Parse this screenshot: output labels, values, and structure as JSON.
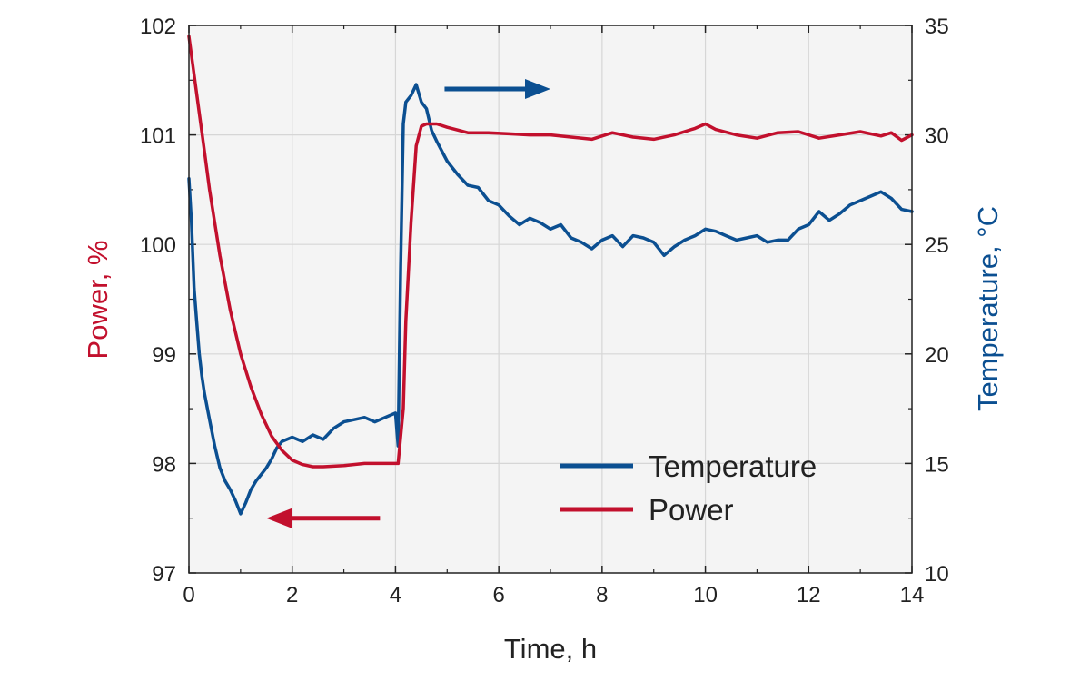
{
  "chart_data": {
    "type": "line",
    "xlabel": "Time, h",
    "ylabel_left": "Power, %",
    "ylabel_right": "Temperature, °C",
    "xlim": [
      0,
      14
    ],
    "ylim_left": [
      97,
      102
    ],
    "ylim_right": [
      10,
      35
    ],
    "x_ticks": [
      0,
      2,
      4,
      6,
      8,
      10,
      12,
      14
    ],
    "y_left_ticks": [
      97,
      98,
      99,
      100,
      101,
      102
    ],
    "y_right_ticks": [
      10,
      15,
      20,
      25,
      30,
      35
    ],
    "grid": true,
    "legend_position": "bottom-right",
    "colors": {
      "temperature": "#0b4f91",
      "power": "#c2102d",
      "plot_background": "#f4f4f4"
    },
    "series": [
      {
        "name": "Temperature",
        "axis": "right",
        "color": "#0b4f91",
        "x": [
          0,
          0.05,
          0.1,
          0.15,
          0.2,
          0.25,
          0.3,
          0.4,
          0.5,
          0.6,
          0.7,
          0.8,
          0.9,
          1.0,
          1.1,
          1.2,
          1.3,
          1.4,
          1.5,
          1.6,
          1.7,
          1.8,
          2.0,
          2.2,
          2.4,
          2.6,
          2.8,
          3.0,
          3.2,
          3.4,
          3.6,
          3.8,
          4.0,
          4.05,
          4.1,
          4.15,
          4.2,
          4.3,
          4.4,
          4.5,
          4.6,
          4.7,
          4.8,
          5.0,
          5.2,
          5.4,
          5.6,
          5.8,
          6.0,
          6.2,
          6.4,
          6.6,
          6.8,
          7.0,
          7.2,
          7.4,
          7.6,
          7.8,
          8.0,
          8.2,
          8.4,
          8.6,
          8.8,
          9.0,
          9.2,
          9.4,
          9.6,
          9.8,
          10.0,
          10.2,
          10.4,
          10.6,
          10.8,
          11.0,
          11.2,
          11.4,
          11.6,
          11.8,
          12.0,
          12.2,
          12.4,
          12.6,
          12.8,
          13.0,
          13.2,
          13.4,
          13.6,
          13.8,
          14.0
        ],
        "y": [
          28,
          26,
          23,
          21.5,
          20,
          19,
          18.2,
          17,
          15.8,
          14.8,
          14.2,
          13.8,
          13.3,
          12.7,
          13.2,
          13.8,
          14.2,
          14.5,
          14.8,
          15.2,
          15.7,
          16,
          16.2,
          16,
          16.3,
          16.1,
          16.6,
          16.9,
          17,
          17.1,
          16.9,
          17.1,
          17.3,
          15.8,
          24,
          30.5,
          31.5,
          31.8,
          32.3,
          31.5,
          31.2,
          30.2,
          29.7,
          28.8,
          28.2,
          27.7,
          27.6,
          27,
          26.8,
          26.3,
          25.9,
          26.2,
          26,
          25.7,
          25.9,
          25.3,
          25.1,
          24.8,
          25.2,
          25.4,
          24.9,
          25.4,
          25.3,
          25.1,
          24.5,
          24.9,
          25.2,
          25.4,
          25.7,
          25.6,
          25.4,
          25.2,
          25.3,
          25.4,
          25.1,
          25.2,
          25.2,
          25.7,
          25.9,
          26.5,
          26.1,
          26.4,
          26.8,
          27,
          27.2,
          27.4,
          27.1,
          26.6,
          26.5
        ]
      },
      {
        "name": "Power",
        "axis": "left",
        "color": "#c2102d",
        "x": [
          0,
          0.1,
          0.2,
          0.3,
          0.4,
          0.5,
          0.6,
          0.8,
          1.0,
          1.2,
          1.4,
          1.6,
          1.8,
          2.0,
          2.2,
          2.4,
          2.6,
          3.0,
          3.4,
          3.8,
          4.05,
          4.15,
          4.2,
          4.3,
          4.4,
          4.5,
          4.6,
          4.8,
          5.0,
          5.4,
          5.8,
          6.2,
          6.6,
          7.0,
          7.4,
          7.8,
          8.2,
          8.6,
          9.0,
          9.4,
          9.8,
          10.0,
          10.2,
          10.6,
          11.0,
          11.4,
          11.8,
          12.2,
          12.6,
          13.0,
          13.4,
          13.6,
          13.8,
          14.0
        ],
        "y": [
          101.9,
          101.55,
          101.2,
          100.85,
          100.5,
          100.2,
          99.9,
          99.4,
          99.0,
          98.7,
          98.45,
          98.25,
          98.12,
          98.03,
          97.99,
          97.97,
          97.97,
          97.98,
          98.0,
          98.0,
          98.0,
          98.5,
          99.3,
          100.2,
          100.9,
          101.08,
          101.1,
          101.1,
          101.07,
          101.02,
          101.02,
          101.01,
          101.0,
          101.0,
          100.98,
          100.96,
          101.02,
          100.98,
          100.96,
          101.0,
          101.06,
          101.1,
          101.05,
          101.0,
          100.97,
          101.02,
          101.03,
          100.97,
          101.0,
          101.03,
          100.99,
          101.02,
          100.95,
          101.0
        ]
      }
    ],
    "legend": [
      {
        "label": "Temperature",
        "color": "#0b4f91"
      },
      {
        "label": "Power",
        "color": "#c2102d"
      }
    ],
    "annotations": [
      {
        "type": "arrow",
        "direction": "left",
        "meaning": "Power uses left axis",
        "x_from": 3.7,
        "x_to": 1.5,
        "y_left": 97.5,
        "color": "#c2102d"
      },
      {
        "type": "arrow",
        "direction": "right",
        "meaning": "Temperature uses right axis",
        "x_from": 4.95,
        "x_to": 7.0,
        "y_right": 32.1,
        "color": "#0b4f91"
      }
    ]
  }
}
